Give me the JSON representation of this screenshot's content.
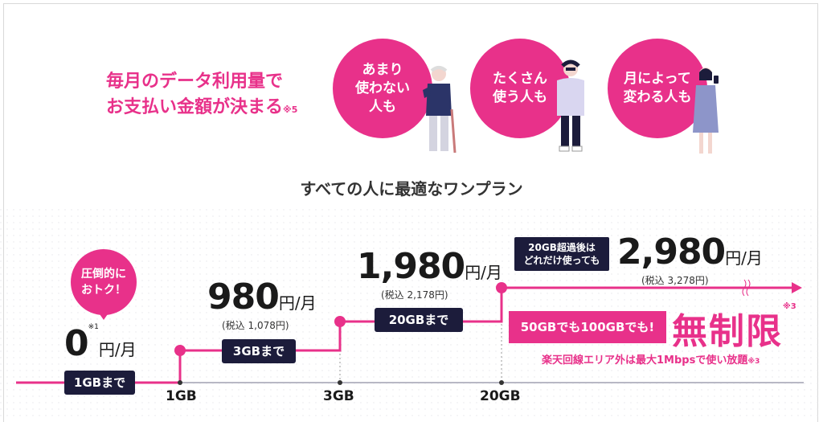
{
  "headline": {
    "line1": "毎月のデータ利用量で",
    "line2": "お支払い金額が決まる",
    "note": "※5"
  },
  "circles": [
    {
      "lines": [
        "あまり",
        "使わない",
        "人も"
      ]
    },
    {
      "lines": [
        "たくさん",
        "使う人も"
      ]
    },
    {
      "lines": [
        "月によって",
        "変わる人も"
      ]
    }
  ],
  "tagline": "すべての人に最適なワンプラン",
  "bubble": {
    "line1": "圧倒的に",
    "line2": "おトク！"
  },
  "tiers": [
    {
      "price": "0",
      "unit": "円/月",
      "note": "※1",
      "tax": "",
      "limit": "1GBまで"
    },
    {
      "price": "980",
      "unit": "円/月",
      "note": "",
      "tax": "(税込 1,078円)",
      "limit": "3GBまで"
    },
    {
      "price": "1,980",
      "unit": "円/月",
      "note": "",
      "tax": "(税込 2,178円)",
      "limit": "20GBまで"
    },
    {
      "price": "2,980",
      "unit": "円/月",
      "note": "",
      "tax": "(税込 3,278円)",
      "limit": ""
    }
  ],
  "axis_labels": [
    "1GB",
    "3GB",
    "20GB"
  ],
  "over20": {
    "line1": "20GB超過後は",
    "line2": "どれだけ使っても"
  },
  "unlimited": {
    "box": "50GBでも100GBでも!",
    "word": "無制限",
    "word_note": "※3",
    "outside": "楽天回線エリア外は最大1Mbpsで使い放題",
    "outside_note": "※3"
  },
  "colors": {
    "accent": "#e8318a",
    "navy": "#1c1c3b"
  }
}
